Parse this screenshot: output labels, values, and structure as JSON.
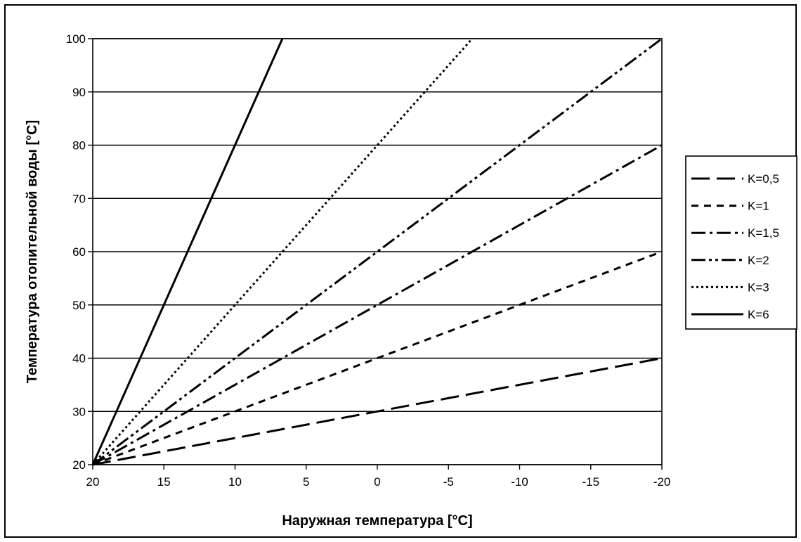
{
  "chart_data": {
    "type": "line",
    "title": "",
    "xlabel": "Наружная температура [°C]",
    "ylabel": "Температура отопительной воды [°C]",
    "xlim": [
      20,
      -20
    ],
    "ylim": [
      20,
      100
    ],
    "x_reversed": true,
    "x_ticks": [
      "20",
      "15",
      "10",
      "5",
      "0",
      "-5",
      "-10",
      "-15",
      "-20"
    ],
    "y_ticks": [
      "20",
      "30",
      "40",
      "50",
      "60",
      "70",
      "80",
      "90",
      "100"
    ],
    "grid": "horizontal",
    "legend_position": "right",
    "series": [
      {
        "name": "K=0,5",
        "style": "dashed",
        "points": [
          [
            20,
            20
          ],
          [
            -20,
            40
          ]
        ]
      },
      {
        "name": "K=1",
        "style": "short-dashed",
        "points": [
          [
            20,
            20
          ],
          [
            -20,
            60
          ]
        ]
      },
      {
        "name": "K=1,5",
        "style": "dash-dot",
        "points": [
          [
            20,
            20
          ],
          [
            -20,
            80
          ]
        ]
      },
      {
        "name": "K=2",
        "style": "dash-dot-dot",
        "points": [
          [
            20,
            20
          ],
          [
            -20,
            100
          ]
        ]
      },
      {
        "name": "K=3",
        "style": "dotted",
        "points": [
          [
            20,
            20
          ],
          [
            -6.67,
            100
          ]
        ]
      },
      {
        "name": "K=6",
        "style": "solid",
        "points": [
          [
            20,
            20
          ],
          [
            6.67,
            100
          ]
        ]
      }
    ]
  }
}
